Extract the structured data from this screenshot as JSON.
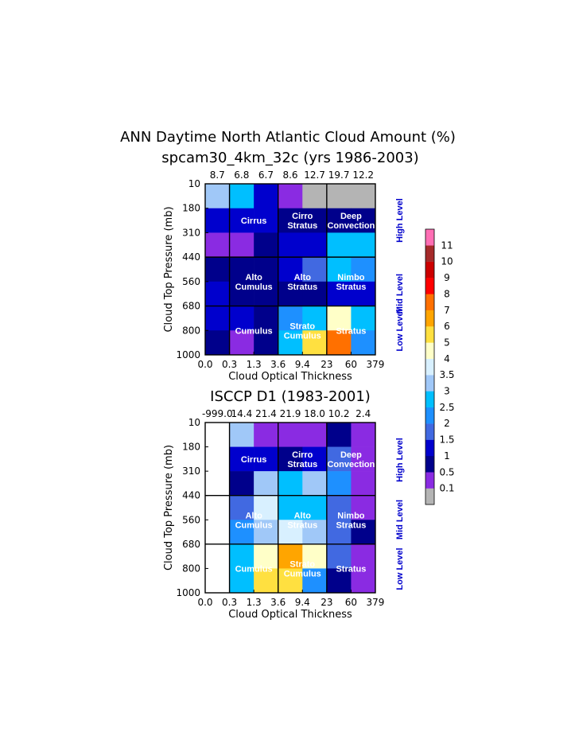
{
  "main_title": "ANN Daytime North Atlantic Cloud Amount (%)",
  "x_ticks": [
    "0.0",
    "0.3",
    "1.3",
    "3.6",
    "9.4",
    "23",
    "60",
    "379"
  ],
  "y_ticks": [
    "10",
    "180",
    "310",
    "440",
    "560",
    "680",
    "800",
    "1000"
  ],
  "level_labels": [
    "High Level",
    "Mid Level",
    "Low Level"
  ],
  "colorbar": {
    "labels": [
      "0.1",
      "0.5",
      "1",
      "1.5",
      "2",
      "2.5",
      "3",
      "3.5",
      "4",
      "5",
      "6",
      "7",
      "8",
      "9",
      "10",
      "11"
    ],
    "colors": [
      "#b4b4b4",
      "#8a2be2",
      "#00008b",
      "#0000cd",
      "#4169e1",
      "#1e90ff",
      "#00bfff",
      "#a0c8f8",
      "#d8f0ff",
      "#ffffc8",
      "#ffe040",
      "#ffa500",
      "#ff7000",
      "#ff0000",
      "#cc0000",
      "#a52a2a",
      "#ff6eb4"
    ]
  },
  "chart_data": [
    {
      "type": "heatmap",
      "title": "spcam30_4km_32c (yrs 1986-2003)",
      "xlabel": "Cloud Optical Thickness",
      "ylabel": "Cloud Top Pressure (mb)",
      "column_totals": [
        "8.7",
        "6.8",
        "6.7",
        "8.6",
        "12.7",
        "19.7",
        "12.2"
      ],
      "bin_codes": [
        [
          7,
          6,
          3,
          1,
          0,
          0,
          0
        ],
        [
          3,
          3,
          3,
          2,
          2,
          2,
          2
        ],
        [
          1,
          1,
          2,
          3,
          3,
          6,
          6
        ],
        [
          2,
          2,
          2,
          3,
          4,
          6,
          5
        ],
        [
          3,
          2,
          2,
          2,
          2,
          3,
          3
        ],
        [
          3,
          3,
          2,
          5,
          6,
          9,
          6
        ],
        [
          2,
          1,
          2,
          6,
          10,
          12,
          5
        ]
      ],
      "cloud_labels": [
        {
          "text": [
            "Cirrus"
          ],
          "col": 2,
          "row": 1.5
        },
        {
          "text": [
            "Cirro",
            "Stratus"
          ],
          "col": 4,
          "row": 1.5
        },
        {
          "text": [
            "Deep",
            "Convection"
          ],
          "col": 6,
          "row": 1.5
        },
        {
          "text": [
            "Alto",
            "Cumulus"
          ],
          "col": 2,
          "row": 4
        },
        {
          "text": [
            "Alto",
            "Stratus"
          ],
          "col": 4,
          "row": 4
        },
        {
          "text": [
            "Nimbo",
            "Stratus"
          ],
          "col": 6,
          "row": 4
        },
        {
          "text": [
            "Cumulus"
          ],
          "col": 2,
          "row": 6
        },
        {
          "text": [
            "Strato",
            "Cumulus"
          ],
          "col": 4,
          "row": 6
        },
        {
          "text": [
            "Stratus"
          ],
          "col": 6,
          "row": 6
        }
      ]
    },
    {
      "type": "heatmap",
      "title": "ISCCP D1 (1983-2001)",
      "xlabel": "Cloud Optical Thickness",
      "ylabel": "Cloud Top Pressure (mb)",
      "column_totals": [
        "-999.0",
        "14.4",
        "21.4",
        "21.9",
        "18.0",
        "10.2",
        "2.4"
      ],
      "bin_codes": [
        [
          -1,
          7,
          1,
          1,
          1,
          2,
          1
        ],
        [
          -1,
          3,
          3,
          2,
          3,
          4,
          1
        ],
        [
          -1,
          2,
          7,
          6,
          7,
          5,
          1
        ],
        [
          -1,
          4,
          8,
          6,
          6,
          4,
          1
        ],
        [
          -1,
          5,
          7,
          8,
          7,
          4,
          2
        ],
        [
          -1,
          6,
          9,
          11,
          9,
          4,
          1
        ],
        [
          -1,
          6,
          10,
          10,
          5,
          2,
          1
        ]
      ],
      "cloud_labels": [
        {
          "text": [
            "Cirrus"
          ],
          "col": 2,
          "row": 1.5
        },
        {
          "text": [
            "Cirro",
            "Stratus"
          ],
          "col": 4,
          "row": 1.5
        },
        {
          "text": [
            "Deep",
            "Convection"
          ],
          "col": 6,
          "row": 1.5
        },
        {
          "text": [
            "Alto",
            "Cumulus"
          ],
          "col": 2,
          "row": 4
        },
        {
          "text": [
            "Alto",
            "Stratus"
          ],
          "col": 4,
          "row": 4
        },
        {
          "text": [
            "Nimbo",
            "Stratus"
          ],
          "col": 6,
          "row": 4
        },
        {
          "text": [
            "Cumulus"
          ],
          "col": 2,
          "row": 6
        },
        {
          "text": [
            "Strato",
            "Cumulus"
          ],
          "col": 4,
          "row": 6
        },
        {
          "text": [
            "Stratus"
          ],
          "col": 6,
          "row": 6
        }
      ]
    }
  ]
}
